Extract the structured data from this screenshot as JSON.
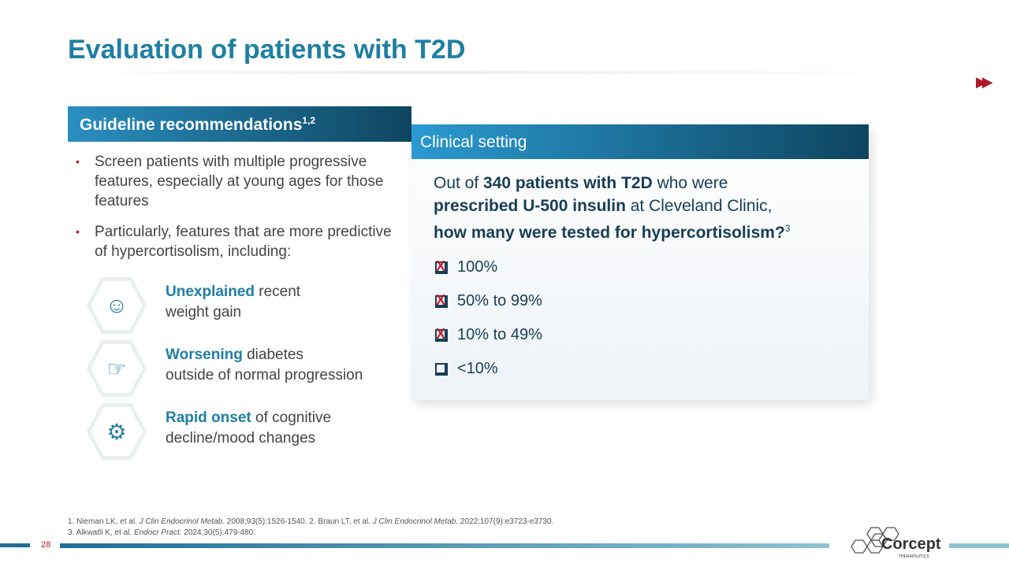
{
  "title": "Evaluation of patients with T2D",
  "guideline": {
    "heading": "Guideline recommendations",
    "sup": "1,2",
    "bullets": [
      "Screen patients with multiple progressive features, especially at young ages for those features",
      "Particularly, features that are more predictive of hypercortisolism, including:"
    ],
    "features": [
      {
        "bold": "Unexplained",
        "rest": " recent",
        "line2": "weight gain",
        "icon": "weight-gain-icon"
      },
      {
        "bold": "Worsening",
        "rest": " diabetes",
        "line2": "outside of normal progression",
        "icon": "glucose-meter-icon"
      },
      {
        "bold": "Rapid onset",
        "rest": " of cognitive",
        "line2": "decline/mood changes",
        "icon": "head-cognition-icon"
      }
    ]
  },
  "clinical": {
    "heading": "Clinical setting",
    "q1": "Out of ",
    "q2": "340 patients with T2D",
    "q3": " who were ",
    "q4": "prescribed U-500 insulin",
    "q5": " at Cleveland Clinic, ",
    "q6": "how many were tested for hypercortisolism?",
    "sup": "3",
    "options": [
      {
        "label": "100%",
        "crossed": true
      },
      {
        "label": "50% to 99%",
        "crossed": true
      },
      {
        "label": "10% to 49%",
        "crossed": true
      },
      {
        "label": "<10%",
        "crossed": false
      }
    ]
  },
  "refs": {
    "r1a": "1. Nieman LK, et al. ",
    "r1j": "J Clin Endocrinol Metab.",
    "r1b": " 2008;93(5):1526-1540. 2. Braun LT, et al. ",
    "r2j": "J Clin Endocrinol Metab.",
    "r2b": " 2022;107(9):e3723-e3730.",
    "r3a": "3. Alkwatli K, et al. ",
    "r3j": "Endocr Pract.",
    "r3b": " 2024;30(5):479-480."
  },
  "page_number": "28",
  "logo": {
    "name": "Corcept",
    "sub": "THERAPEUTICS"
  },
  "colors": {
    "accent": "#1f7fa3",
    "red": "#b0182a",
    "navy": "#173e55"
  }
}
